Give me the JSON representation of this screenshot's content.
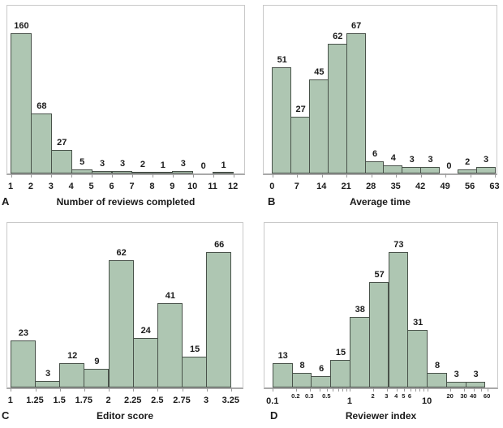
{
  "figure": {
    "background": "#ffffff"
  },
  "colors": {
    "bar_fill": "#aec6b2",
    "bar_border": "#49524a",
    "plot_frame": "#c9c9c9",
    "axis_line": "#a9a9a9",
    "tick_mark": "#9a9a9a",
    "text": "#1a1a1a"
  },
  "chart_data": [
    {
      "id": "A",
      "type": "bar",
      "panel_letter": "A",
      "xlabel": "Number of reviews completed",
      "xscale": "linear",
      "xlim": [
        0.8,
        12.6
      ],
      "ylim": [
        0,
        194
      ],
      "bin_edges": [
        1,
        2,
        3,
        4,
        5,
        6,
        7,
        8,
        9,
        10,
        11,
        12
      ],
      "values": [
        160,
        68,
        27,
        5,
        3,
        3,
        2,
        1,
        3,
        0,
        1
      ],
      "ticks": [
        {
          "v": 1,
          "label": "1",
          "size": "major"
        },
        {
          "v": 2,
          "label": "2",
          "size": "major"
        },
        {
          "v": 3,
          "label": "3",
          "size": "major"
        },
        {
          "v": 4,
          "label": "4",
          "size": "major"
        },
        {
          "v": 5,
          "label": "5",
          "size": "major"
        },
        {
          "v": 6,
          "label": "6",
          "size": "major"
        },
        {
          "v": 7,
          "label": "7",
          "size": "major"
        },
        {
          "v": 8,
          "label": "8",
          "size": "major"
        },
        {
          "v": 9,
          "label": "9",
          "size": "major"
        },
        {
          "v": 10,
          "label": "10",
          "size": "major"
        },
        {
          "v": 11,
          "label": "11",
          "size": "major"
        },
        {
          "v": 12,
          "label": "12",
          "size": "major"
        }
      ]
    },
    {
      "id": "B",
      "type": "bar",
      "panel_letter": "B",
      "xlabel": "Average time",
      "xscale": "linear",
      "xlim": [
        -2.6,
        63.8
      ],
      "ylim": [
        0,
        81.5
      ],
      "bin_edges": [
        0,
        5.25,
        10.5,
        15.75,
        21,
        26.25,
        31.5,
        36.75,
        42,
        47.25,
        52.5,
        57.75,
        63
      ],
      "values": [
        51,
        27,
        45,
        62,
        67,
        6,
        4,
        3,
        3,
        0,
        2,
        3
      ],
      "ticks": [
        {
          "v": 0,
          "label": "0",
          "size": "major"
        },
        {
          "v": 7,
          "label": "7",
          "size": "major"
        },
        {
          "v": 14,
          "label": "14",
          "size": "major"
        },
        {
          "v": 21,
          "label": "21",
          "size": "major"
        },
        {
          "v": 28,
          "label": "28",
          "size": "major"
        },
        {
          "v": 35,
          "label": "35",
          "size": "major"
        },
        {
          "v": 42,
          "label": "42",
          "size": "major"
        },
        {
          "v": 49,
          "label": "49",
          "size": "major"
        },
        {
          "v": 56,
          "label": "56",
          "size": "major"
        },
        {
          "v": 63,
          "label": "63",
          "size": "major"
        }
      ]
    },
    {
      "id": "C",
      "type": "bar",
      "panel_letter": "C",
      "xlabel": "Editor score",
      "xscale": "linear",
      "xlim": [
        0.96,
        3.38
      ],
      "ylim": [
        0,
        81.5
      ],
      "bin_edges": [
        1,
        1.25,
        1.5,
        1.75,
        2,
        2.25,
        2.5,
        2.75,
        3,
        3.25
      ],
      "values": [
        23,
        3,
        12,
        9,
        62,
        24,
        41,
        15,
        66
      ],
      "ticks": [
        {
          "v": 1,
          "label": "1",
          "size": "major"
        },
        {
          "v": 1.25,
          "label": "1.25",
          "size": "major"
        },
        {
          "v": 1.5,
          "label": "1.5",
          "size": "major"
        },
        {
          "v": 1.75,
          "label": "1.75",
          "size": "major"
        },
        {
          "v": 2,
          "label": "2",
          "size": "major"
        },
        {
          "v": 2.25,
          "label": "2.25",
          "size": "major"
        },
        {
          "v": 2.5,
          "label": "2.5",
          "size": "major"
        },
        {
          "v": 2.75,
          "label": "2.75",
          "size": "major"
        },
        {
          "v": 3,
          "label": "3",
          "size": "major"
        },
        {
          "v": 3.25,
          "label": "3.25",
          "size": "major"
        }
      ]
    },
    {
      "id": "D",
      "type": "bar",
      "panel_letter": "D",
      "xlabel": "Reviewer index",
      "xscale": "log",
      "xlim": [
        0.077,
        84
      ],
      "ylim": [
        0,
        90
      ],
      "bin_edges": [
        0.1,
        0.178,
        0.316,
        0.562,
        1,
        1.778,
        3.162,
        5.623,
        10,
        17.78,
        31.62,
        56.23
      ],
      "values": [
        13,
        8,
        6,
        15,
        38,
        57,
        73,
        31,
        8,
        3,
        3
      ],
      "ticks": [
        {
          "v": 0.1,
          "label": "0.1",
          "size": "major"
        },
        {
          "v": 0.2,
          "label": "0.2",
          "size": "minor"
        },
        {
          "v": 0.3,
          "label": "0.3",
          "size": "minor"
        },
        {
          "v": 0.4,
          "label": "",
          "size": "minor"
        },
        {
          "v": 0.5,
          "label": "0.5",
          "size": "minor"
        },
        {
          "v": 0.6,
          "label": "",
          "size": "minor"
        },
        {
          "v": 0.7,
          "label": "",
          "size": "minor"
        },
        {
          "v": 0.8,
          "label": "",
          "size": "minor"
        },
        {
          "v": 0.9,
          "label": "",
          "size": "minor"
        },
        {
          "v": 1,
          "label": "1",
          "size": "major"
        },
        {
          "v": 2,
          "label": "2",
          "size": "minor"
        },
        {
          "v": 3,
          "label": "3",
          "size": "minor"
        },
        {
          "v": 4,
          "label": "4",
          "size": "minor"
        },
        {
          "v": 5,
          "label": "5",
          "size": "minor"
        },
        {
          "v": 6,
          "label": "6",
          "size": "minor"
        },
        {
          "v": 7,
          "label": "",
          "size": "minor"
        },
        {
          "v": 8,
          "label": "",
          "size": "minor"
        },
        {
          "v": 9,
          "label": "",
          "size": "minor"
        },
        {
          "v": 10,
          "label": "10",
          "size": "major"
        },
        {
          "v": 20,
          "label": "20",
          "size": "minor"
        },
        {
          "v": 30,
          "label": "30",
          "size": "minor"
        },
        {
          "v": 40,
          "label": "40",
          "size": "minor"
        },
        {
          "v": 50,
          "label": "",
          "size": "minor"
        },
        {
          "v": 60,
          "label": "60",
          "size": "minor"
        }
      ]
    }
  ]
}
